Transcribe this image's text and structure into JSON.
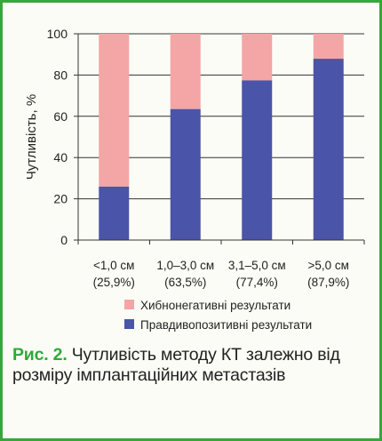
{
  "colors": {
    "frame": "#35a83a",
    "false_negative": "#f4a5a5",
    "true_positive": "#4a54a8",
    "caption_accent": "#2eaa3a"
  },
  "chart_data": {
    "type": "bar",
    "stacked": true,
    "ylabel": "Чутливість, %",
    "ylim": [
      0,
      100
    ],
    "yticks": [
      "0",
      "20",
      "40",
      "60",
      "80",
      "100"
    ],
    "grid": true,
    "legend_position": "bottom",
    "categories": [
      {
        "line1": "<1,0 см",
        "line2": "(25,9%)"
      },
      {
        "line1": "1,0–3,0 см",
        "line2": "(63,5%)"
      },
      {
        "line1": "3,1–5,0 см",
        "line2": "(77,4%)"
      },
      {
        "line1": ">5,0 см",
        "line2": "(87,9%)"
      }
    ],
    "series": [
      {
        "name": "Правдивопозитивні результати",
        "values": [
          25.9,
          63.5,
          77.4,
          87.9
        ]
      },
      {
        "name": "Хибнонегативні результати",
        "values": [
          74.1,
          36.5,
          22.6,
          12.1
        ]
      }
    ],
    "legend": [
      "Хибнонегативні результати",
      "Правдивопозитивні результати"
    ]
  },
  "caption": {
    "label": "Рис. 2.",
    "text": " Чутливість методу КТ залежно від розміру імплантаційних метастазів"
  }
}
